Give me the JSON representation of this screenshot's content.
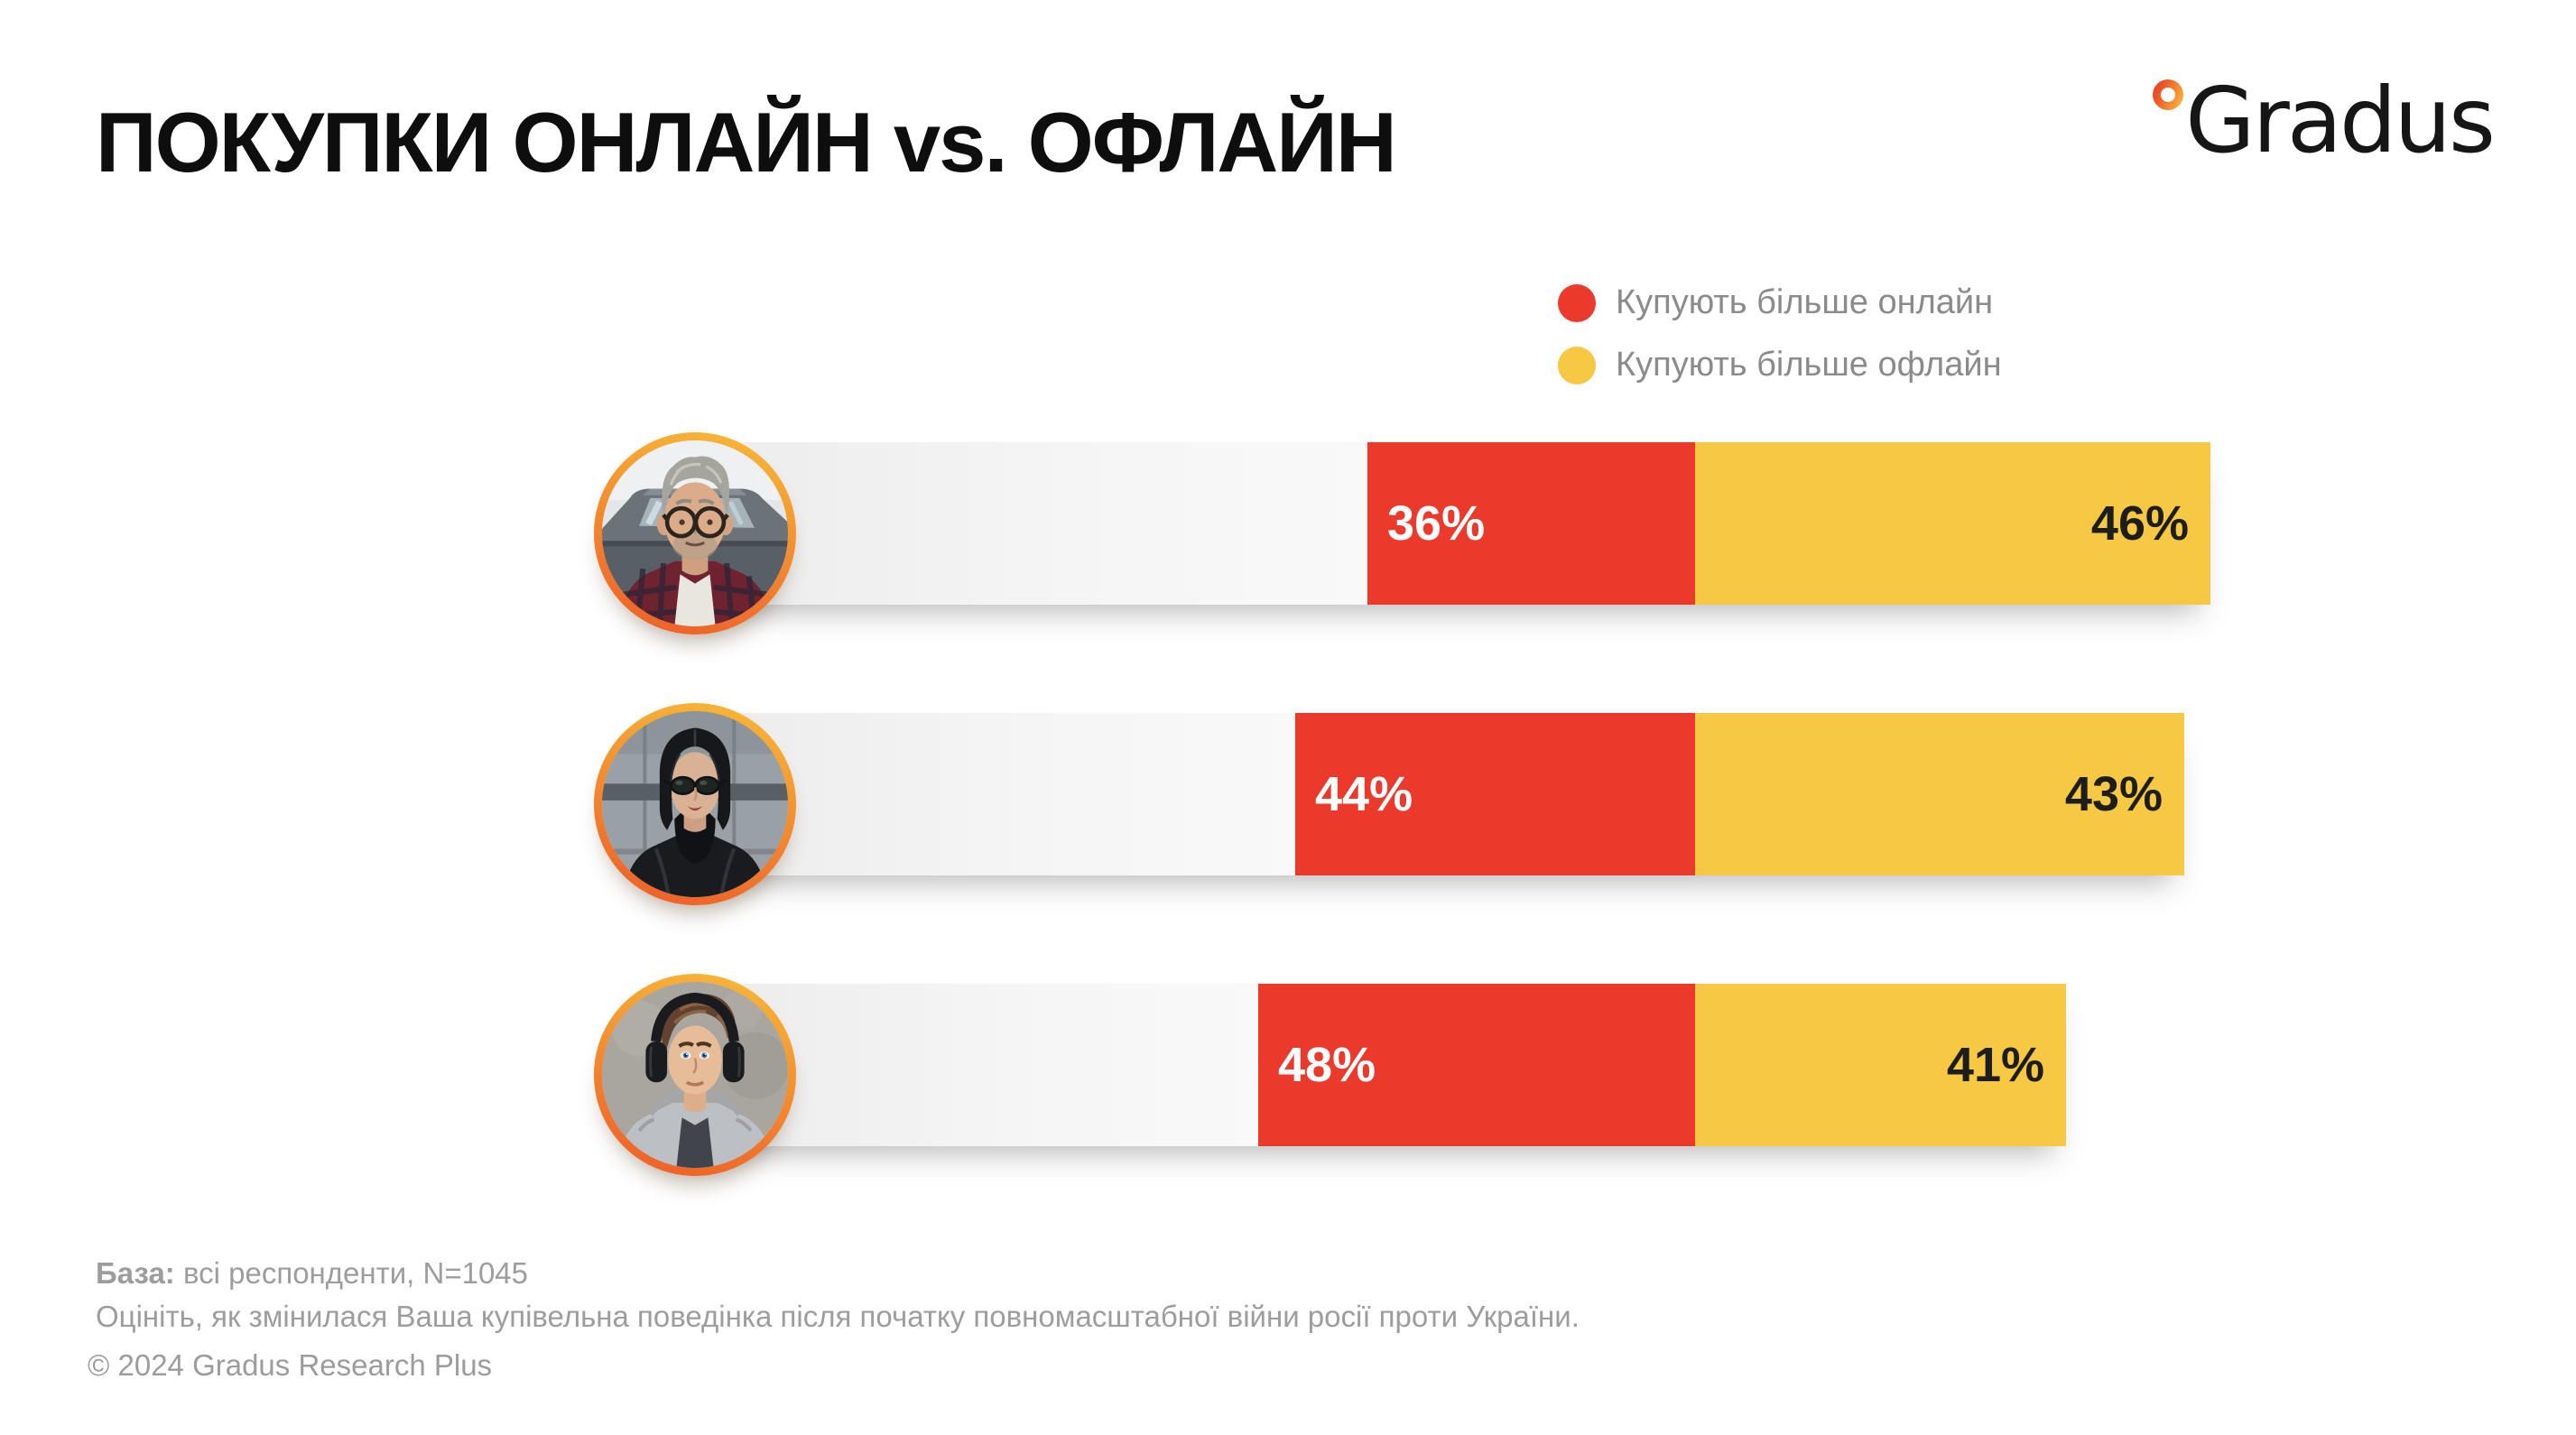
{
  "title": "ПОКУПКИ ОНЛАЙН vs. ОФЛАЙН",
  "logo": {
    "text": "Gradus",
    "dot_icon": "degree-dot-icon",
    "dot_colors": [
      "#e94a26",
      "#f9a93a"
    ]
  },
  "legend": [
    {
      "label": "Купують більше онлайн",
      "color": "#eb392b"
    },
    {
      "label": "Купують більше офлайн",
      "color": "#f6c843"
    }
  ],
  "chart_data": {
    "type": "bar",
    "orientation": "horizontal",
    "unit": "%",
    "title": "ПОКУПКИ ОНЛАЙН vs. ОФЛАЙН",
    "categories": [
      "man-glasses",
      "woman-sunglasses",
      "young-man-headphones"
    ],
    "series": [
      {
        "name": "Купують більше онлайн",
        "color": "#eb392b",
        "text_color": "#ffffff",
        "values": [
          36,
          44,
          48
        ]
      },
      {
        "name": "Купують більше офлайн",
        "color": "#f6c843",
        "text_color": "#1d1d1b",
        "values": [
          46,
          43,
          41
        ]
      }
    ],
    "legend_position": "top-right",
    "grid": false,
    "track_color_left": "#ececec",
    "track_color_right": "#f9f9f9",
    "avatar_ring_colors": [
      "#f8bc38",
      "#ed5b28"
    ]
  },
  "footer": {
    "base_bold": "База:",
    "base_rest": " всі респонденти, N=1045",
    "question": "Оцініть, як змінилася Ваша купівельна поведінка після початку повномасштабної війни росії проти України.",
    "copyright": "© 2024 Gradus Research Plus"
  }
}
